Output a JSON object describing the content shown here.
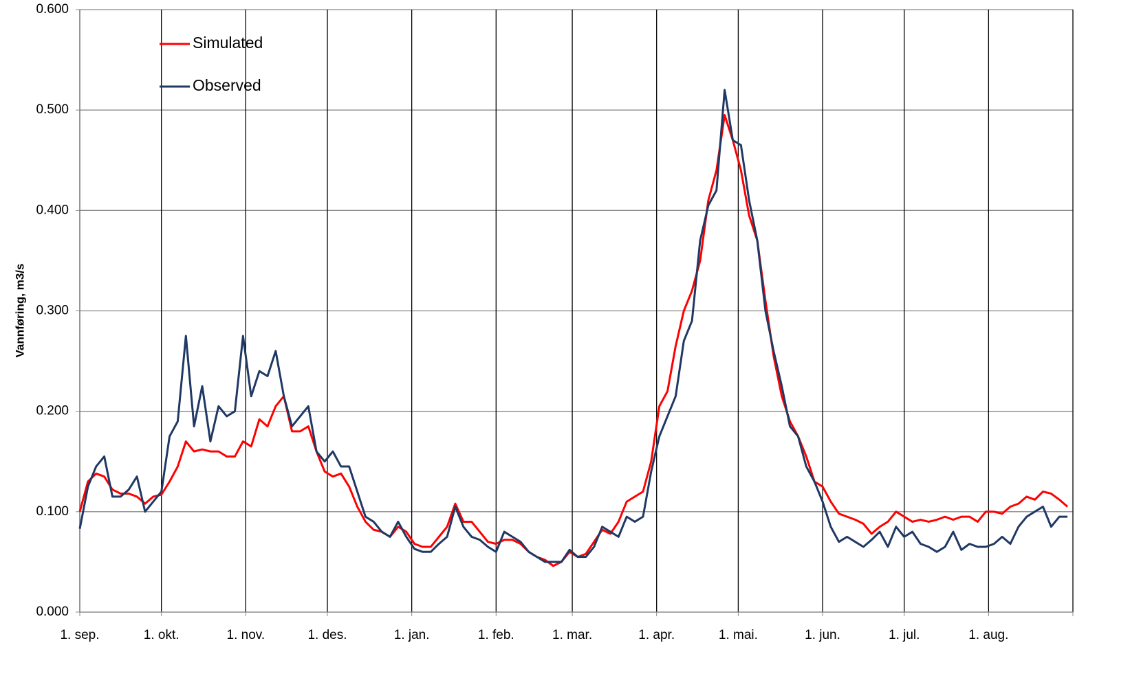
{
  "chart_data": {
    "type": "line",
    "ylabel": "Vannføring, m3/s",
    "x": [
      0,
      3,
      6,
      9,
      12,
      15,
      18,
      21,
      24,
      27,
      30,
      33,
      36,
      39,
      42,
      45,
      48,
      51,
      54,
      57,
      60,
      63,
      66,
      69,
      72,
      75,
      78,
      81,
      84,
      87,
      90,
      93,
      96,
      99,
      102,
      105,
      108,
      111,
      114,
      117,
      120,
      123,
      126,
      129,
      132,
      135,
      138,
      141,
      144,
      147,
      150,
      153,
      156,
      159,
      162,
      165,
      168,
      171,
      174,
      177,
      180,
      183,
      186,
      189,
      192,
      195,
      198,
      201,
      204,
      207,
      210,
      213,
      216,
      219,
      222,
      225,
      228,
      231,
      234,
      237,
      240,
      243,
      246,
      249,
      252,
      255,
      258,
      261,
      264,
      267,
      270,
      273,
      276,
      279,
      282,
      285,
      288,
      291,
      294,
      297,
      300,
      303,
      306,
      309,
      312,
      315,
      318,
      321,
      324,
      327,
      330,
      333,
      336,
      339,
      342,
      345,
      348,
      351,
      354,
      357,
      360,
      363
    ],
    "series": [
      {
        "name": "Simulated",
        "color": "#ff0000",
        "values": [
          0.1,
          0.13,
          0.138,
          0.135,
          0.122,
          0.118,
          0.118,
          0.115,
          0.108,
          0.115,
          0.117,
          0.13,
          0.145,
          0.17,
          0.16,
          0.162,
          0.16,
          0.16,
          0.155,
          0.155,
          0.17,
          0.165,
          0.192,
          0.185,
          0.205,
          0.215,
          0.18,
          0.18,
          0.185,
          0.16,
          0.14,
          0.135,
          0.138,
          0.125,
          0.105,
          0.09,
          0.082,
          0.08,
          0.075,
          0.085,
          0.08,
          0.068,
          0.065,
          0.065,
          0.075,
          0.085,
          0.108,
          0.09,
          0.09,
          0.08,
          0.07,
          0.068,
          0.072,
          0.072,
          0.068,
          0.06,
          0.055,
          0.052,
          0.046,
          0.05,
          0.06,
          0.055,
          0.058,
          0.07,
          0.082,
          0.078,
          0.09,
          0.11,
          0.115,
          0.12,
          0.15,
          0.205,
          0.22,
          0.265,
          0.3,
          0.32,
          0.35,
          0.41,
          0.44,
          0.495,
          0.47,
          0.44,
          0.395,
          0.37,
          0.31,
          0.255,
          0.215,
          0.19,
          0.175,
          0.155,
          0.13,
          0.125,
          0.11,
          0.098,
          0.095,
          0.092,
          0.088,
          0.078,
          0.085,
          0.09,
          0.1,
          0.095,
          0.09,
          0.092,
          0.09,
          0.092,
          0.095,
          0.092,
          0.095,
          0.095,
          0.09,
          0.1,
          0.1,
          0.098,
          0.105,
          0.108,
          0.115,
          0.112,
          0.12,
          0.118,
          0.112,
          0.105
        ]
      },
      {
        "name": "Observed",
        "color": "#1f3864",
        "values": [
          0.083,
          0.125,
          0.145,
          0.155,
          0.115,
          0.115,
          0.122,
          0.135,
          0.1,
          0.11,
          0.12,
          0.175,
          0.19,
          0.275,
          0.185,
          0.225,
          0.17,
          0.205,
          0.195,
          0.2,
          0.275,
          0.215,
          0.24,
          0.235,
          0.26,
          0.215,
          0.185,
          0.195,
          0.205,
          0.16,
          0.15,
          0.16,
          0.145,
          0.145,
          0.12,
          0.095,
          0.09,
          0.08,
          0.075,
          0.09,
          0.075,
          0.063,
          0.06,
          0.06,
          0.068,
          0.075,
          0.105,
          0.085,
          0.075,
          0.072,
          0.065,
          0.06,
          0.08,
          0.075,
          0.07,
          0.06,
          0.055,
          0.05,
          0.05,
          0.05,
          0.062,
          0.055,
          0.055,
          0.065,
          0.085,
          0.08,
          0.075,
          0.095,
          0.09,
          0.095,
          0.14,
          0.175,
          0.195,
          0.215,
          0.27,
          0.29,
          0.37,
          0.405,
          0.42,
          0.52,
          0.47,
          0.465,
          0.41,
          0.37,
          0.3,
          0.26,
          0.225,
          0.185,
          0.175,
          0.145,
          0.13,
          0.11,
          0.085,
          0.07,
          0.075,
          0.07,
          0.065,
          0.072,
          0.08,
          0.065,
          0.085,
          0.075,
          0.08,
          0.068,
          0.065,
          0.06,
          0.065,
          0.08,
          0.062,
          0.068,
          0.065,
          0.065,
          0.068,
          0.075,
          0.068,
          0.085,
          0.095,
          0.1,
          0.105,
          0.085,
          0.095,
          0.095
        ]
      }
    ],
    "xlim": [
      0,
      365
    ],
    "xticks": [
      {
        "value": 0,
        "label": "1. sep."
      },
      {
        "value": 30,
        "label": "1. okt."
      },
      {
        "value": 61,
        "label": "1. nov."
      },
      {
        "value": 91,
        "label": "1. des."
      },
      {
        "value": 122,
        "label": "1. jan."
      },
      {
        "value": 153,
        "label": "1. feb."
      },
      {
        "value": 181,
        "label": "1. mar."
      },
      {
        "value": 212,
        "label": "1. apr."
      },
      {
        "value": 242,
        "label": "1. mai."
      },
      {
        "value": 273,
        "label": "1. jun."
      },
      {
        "value": 303,
        "label": "1. jul."
      },
      {
        "value": 334,
        "label": "1. aug."
      },
      {
        "value": 365,
        "label": ""
      }
    ],
    "ylim": [
      0,
      0.6
    ],
    "yticks": [
      {
        "value": 0,
        "label": "0.000"
      },
      {
        "value": 0.1,
        "label": "0.100"
      },
      {
        "value": 0.2,
        "label": "0.200"
      },
      {
        "value": 0.3,
        "label": "0.300"
      },
      {
        "value": 0.4,
        "label": "0.400"
      },
      {
        "value": 0.5,
        "label": "0.500"
      },
      {
        "value": 0.6,
        "label": "0.600"
      }
    ],
    "grid": true,
    "legend": "upper-left"
  }
}
